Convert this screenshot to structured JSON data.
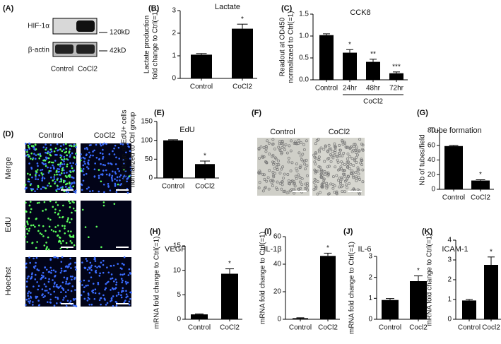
{
  "blot": {
    "panel": "(A)",
    "bands": [
      "HIF-1α",
      "β-actin"
    ],
    "sizes": [
      "120kD",
      "42kD"
    ],
    "lanes": [
      "Control",
      "CoCl2"
    ]
  },
  "edu_images": {
    "panel": "(D)",
    "columns": [
      "Control",
      "CoCl2"
    ],
    "rows": [
      "Merge",
      "EdU",
      "Hoechst"
    ]
  },
  "tube_images": {
    "panel": "(F)",
    "columns": [
      "Control",
      "CoCl2"
    ]
  },
  "chart_data": [
    {
      "type": "bar",
      "panel": "(B)",
      "title": "Lactate",
      "ylabel": [
        "Lactate production",
        "fold change to Ctrl(=1)"
      ],
      "categories": [
        "Control",
        "CoCl2"
      ],
      "values": [
        1.05,
        2.2
      ],
      "errors": [
        0.05,
        0.2
      ],
      "annotations": [
        null,
        "*"
      ],
      "color": "#000000",
      "ylim": [
        0,
        3
      ],
      "yticks": [
        0,
        1,
        2,
        3
      ]
    },
    {
      "type": "bar",
      "panel": "(C)",
      "title": "CCK8",
      "ylabel": [
        "Readout at OD450",
        "normalizaed to Ctrl(=1)"
      ],
      "categories": [
        "Control",
        "24hr",
        "48hr",
        "72hr"
      ],
      "group_label": "CoCl2",
      "values": [
        1.02,
        0.62,
        0.41,
        0.15
      ],
      "errors": [
        0.03,
        0.07,
        0.06,
        0.03
      ],
      "annotations": [
        null,
        "*",
        "**",
        "***"
      ],
      "color": "#000000",
      "ylim": [
        0,
        1.5
      ],
      "yticks": [
        {
          "value": 0,
          "label": "0.0"
        },
        0.5,
        {
          "value": 1,
          "label": "1.0"
        },
        1.5
      ]
    },
    {
      "type": "bar",
      "panel": "(E)",
      "title": "EdU",
      "ylabel": [
        "Percentage of EdU+ cells",
        "normalized to Ctrl group"
      ],
      "categories": [
        "Control",
        "CoCl2"
      ],
      "values": [
        100,
        37
      ],
      "errors": [
        1.5,
        8
      ],
      "annotations": [
        null,
        "*"
      ],
      "color": "#000000",
      "ylim": [
        0,
        150
      ],
      "yticks": [
        0,
        50,
        100,
        150
      ]
    },
    {
      "type": "bar",
      "panel": "(G)",
      "title": "Tube formation",
      "ylabel": [
        "Nb of tubes/field"
      ],
      "categories": [
        "Control",
        "CoCl2"
      ],
      "values": [
        59,
        12
      ],
      "errors": [
        1,
        1
      ],
      "annotations": [
        null,
        "*"
      ],
      "color": "#000000",
      "ylim": [
        0,
        80
      ],
      "yticks": [
        0,
        20,
        40,
        60,
        80
      ]
    },
    {
      "type": "bar",
      "panel": "(H)",
      "title": "VEGF",
      "ylabel": [
        "mRNA fold change to Ctrl(=1)"
      ],
      "categories": [
        "Control",
        "CoCl2"
      ],
      "values": [
        1,
        9.3
      ],
      "errors": [
        0.1,
        1
      ],
      "annotations": [
        null,
        "*"
      ],
      "color": "#000000",
      "ylim": [
        0,
        15
      ],
      "yticks": [
        0,
        5,
        10,
        15
      ]
    },
    {
      "type": "bar",
      "panel": "(I)",
      "title": "IL-1β",
      "ylabel": [
        "mRNA fold change to Ctrl(=1)"
      ],
      "categories": [
        "Control",
        "CoCl2"
      ],
      "values": [
        0.8,
        46
      ],
      "errors": [
        0.3,
        2
      ],
      "annotations": [
        null,
        "*"
      ],
      "color": "#000000",
      "ylim": [
        0,
        60
      ],
      "yticks": [
        0,
        20,
        40,
        60
      ]
    },
    {
      "type": "bar",
      "panel": "(J)",
      "title": "IL-6",
      "ylabel": [
        "mRNA fold change to Ctrl(=1)"
      ],
      "categories": [
        "Control",
        "Cocl2"
      ],
      "values": [
        0.92,
        1.82
      ],
      "errors": [
        0.07,
        0.25
      ],
      "annotations": [
        null,
        "*"
      ],
      "color": "#000000",
      "ylim": [
        0,
        3
      ],
      "yticks": [
        0,
        1,
        2,
        3
      ]
    },
    {
      "type": "bar",
      "panel": "(K)",
      "title": "ICAM-1",
      "ylabel": [
        "mRNA fold change to Ctrl(=1)"
      ],
      "categories": [
        "Control",
        "Cocl2"
      ],
      "values": [
        0.95,
        2.75
      ],
      "errors": [
        0.05,
        0.4
      ],
      "annotations": [
        null,
        "*"
      ],
      "color": "#000000",
      "ylim": [
        0,
        4
      ],
      "yticks": [
        0,
        1,
        2,
        3,
        4
      ]
    }
  ]
}
